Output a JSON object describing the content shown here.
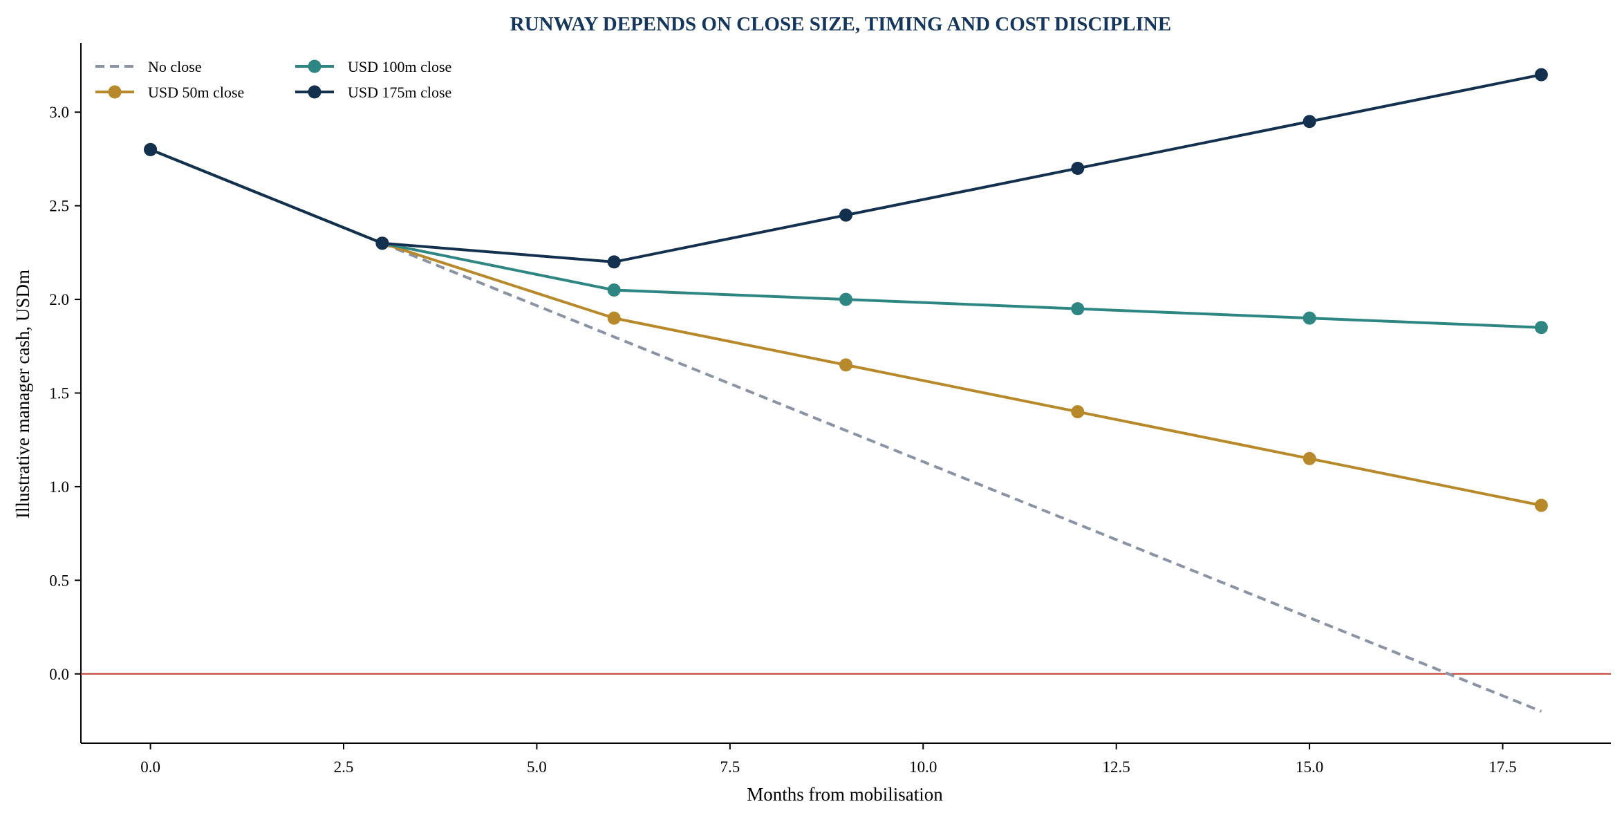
{
  "chart_data": {
    "type": "line",
    "title": "RUNWAY DEPENDS ON CLOSE SIZE, TIMING AND COST DISCIPLINE",
    "xlabel": "Months from mobilisation",
    "ylabel": "Illustrative manager cash, USDm",
    "xlim": [
      -0.9,
      18.9
    ],
    "ylim": [
      -0.37,
      3.37
    ],
    "xticks": [
      "0.0",
      "2.5",
      "5.0",
      "7.5",
      "10.0",
      "12.5",
      "15.0",
      "17.5"
    ],
    "xtick_values": [
      0,
      2.5,
      5,
      7.5,
      10,
      12.5,
      15,
      17.5
    ],
    "yticks": [
      "0.0",
      "0.5",
      "1.0",
      "1.5",
      "2.0",
      "2.5",
      "3.0"
    ],
    "ytick_values": [
      0,
      0.5,
      1,
      1.5,
      2,
      2.5,
      3
    ],
    "grid": false,
    "legend_position": "top-left",
    "reference_line": {
      "y": 0,
      "color": "#c0392b"
    },
    "title_color": "#14365c",
    "series": [
      {
        "name": "No close",
        "color": "#8a93a3",
        "style": "dashed",
        "markers": false,
        "x": [
          3,
          18
        ],
        "y": [
          2.3,
          -0.2
        ]
      },
      {
        "name": "USD 50m close",
        "color": "#b8892a",
        "style": "solid",
        "markers": true,
        "x": [
          0,
          3,
          6,
          9,
          12,
          15,
          18
        ],
        "y": [
          2.8,
          2.3,
          1.9,
          1.65,
          1.4,
          1.15,
          0.9
        ]
      },
      {
        "name": "USD 100m close",
        "color": "#2e8683",
        "style": "solid",
        "markers": true,
        "x": [
          0,
          3,
          6,
          9,
          12,
          15,
          18
        ],
        "y": [
          2.8,
          2.3,
          2.05,
          2.0,
          1.95,
          1.9,
          1.85
        ]
      },
      {
        "name": "USD 175m close",
        "color": "#14304f",
        "style": "solid",
        "markers": true,
        "x": [
          0,
          3,
          6,
          9,
          12,
          15,
          18
        ],
        "y": [
          2.8,
          2.3,
          2.2,
          2.45,
          2.7,
          2.95,
          3.2
        ]
      }
    ]
  }
}
